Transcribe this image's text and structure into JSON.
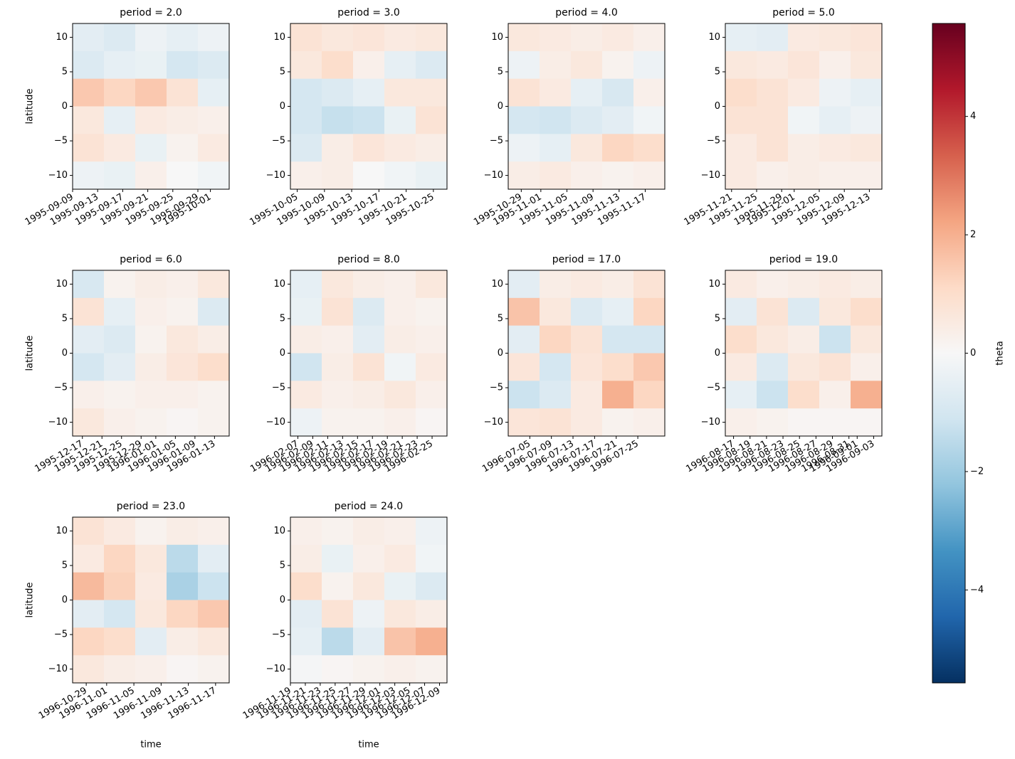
{
  "chart_data": {
    "type": "heatmap",
    "panels": [
      {
        "title": "period = 2.0",
        "ylabel": "latitude",
        "xlim": [
          "1995-09-09",
          "1995-10-04"
        ],
        "xticks": [
          "1995-09-09",
          "1995-09-13",
          "1995-09-17",
          "1995-09-21",
          "1995-09-25",
          "1995-09-29",
          "1995-10-01"
        ],
        "ylim": [
          -12,
          12
        ],
        "yticks": [
          {
            "value": -10,
            "label": "−10"
          },
          {
            "value": -5,
            "label": "−5"
          },
          0,
          5,
          10
        ],
        "z": [
          [
            -0.6,
            -0.8,
            -0.3,
            -0.5,
            -0.3
          ],
          [
            -0.8,
            -0.5,
            -0.4,
            -1,
            -0.8
          ],
          [
            1.5,
            1.2,
            1.5,
            0.8,
            -0.5
          ],
          [
            0.6,
            -0.5,
            0.5,
            0.4,
            0.3
          ],
          [
            0.8,
            0.5,
            -0.4,
            0.2,
            0.5
          ],
          [
            -0.3,
            -0.4,
            0.3,
            0,
            -0.2
          ]
        ]
      },
      {
        "title": "period = 3.0",
        "xlim": [
          "1995-10-04",
          "1995-10-27"
        ],
        "xticks": [
          "1995-10-05",
          "1995-10-09",
          "1995-10-13",
          "1995-10-17",
          "1995-10-21",
          "1995-10-25"
        ],
        "ylim": [
          -12,
          12
        ],
        "yticks": [
          {
            "value": -10,
            "label": "−10"
          },
          {
            "value": -5,
            "label": "−5"
          },
          0,
          5,
          10
        ],
        "z": [
          [
            0.8,
            0.6,
            0.7,
            0.5,
            0.6
          ],
          [
            0.6,
            1.0,
            0.3,
            -0.5,
            -0.8
          ],
          [
            -1,
            -0.8,
            -0.5,
            0.6,
            0.6
          ],
          [
            -1.0,
            -1.3,
            -1.2,
            -0.4,
            0.8
          ],
          [
            -0.8,
            0.4,
            0.7,
            0.5,
            0.4
          ],
          [
            0.3,
            0.4,
            0,
            -0.2,
            -0.4
          ]
        ]
      },
      {
        "title": "period = 4.0",
        "xlim": [
          "1995-10-27",
          "1995-11-20"
        ],
        "xticks": [
          "1995-10-29",
          "1995-11-01",
          "1995-11-05",
          "1995-11-09",
          "1995-11-13",
          "1995-11-17"
        ],
        "ylim": [
          -12,
          12
        ],
        "yticks": [
          {
            "value": -10,
            "label": "−10"
          },
          {
            "value": -5,
            "label": "−5"
          },
          0,
          5,
          10
        ],
        "z": [
          [
            0.6,
            0.5,
            0.4,
            0.5,
            0.3
          ],
          [
            -0.3,
            0.4,
            0.6,
            0.2,
            -0.3
          ],
          [
            0.8,
            0.5,
            -0.5,
            -0.9,
            0.3
          ],
          [
            -1,
            -1.1,
            -0.8,
            -0.6,
            -0.2
          ],
          [
            -0.3,
            -0.5,
            0.6,
            1.2,
            1.0
          ],
          [
            0.4,
            0.5,
            0.3,
            0.2,
            0.3
          ]
        ]
      },
      {
        "title": "period = 5.0",
        "xlim": [
          "1995-11-20",
          "1995-12-15"
        ],
        "xticks": [
          "1995-11-21",
          "1995-11-25",
          "1995-11-29",
          "1995-12-01",
          "1995-12-05",
          "1995-12-09",
          "1995-12-13"
        ],
        "ylim": [
          -12,
          12
        ],
        "yticks": [
          {
            "value": -10,
            "label": "−10"
          },
          {
            "value": -5,
            "label": "−5"
          },
          0,
          5,
          10
        ],
        "z": [
          [
            -0.5,
            -0.6,
            0.5,
            0.6,
            0.7
          ],
          [
            0.6,
            0.5,
            0.7,
            0.3,
            0.6
          ],
          [
            1.0,
            0.8,
            0.5,
            -0.3,
            -0.5
          ],
          [
            0.8,
            0.8,
            -0.2,
            -0.5,
            -0.3
          ],
          [
            0.5,
            0.8,
            0.4,
            0.5,
            0.6
          ],
          [
            0.5,
            0.3,
            0.4,
            0.3,
            0.3
          ]
        ]
      },
      {
        "title": "period = 6.0",
        "ylabel": "latitude",
        "xlim": [
          "1995-12-15",
          "1996-01-16"
        ],
        "xticks": [
          "1995-12-17",
          "1995-12-21",
          "1995-12-25",
          "1995-12-29",
          "1996-01-01",
          "1996-01-05",
          "1996-01-09",
          "1996-01-13"
        ],
        "ylim": [
          -12,
          12
        ],
        "yticks": [
          {
            "value": -10,
            "label": "−10"
          },
          {
            "value": -5,
            "label": "−5"
          },
          0,
          5,
          10
        ],
        "z": [
          [
            -0.9,
            0.2,
            0.4,
            0.3,
            0.6
          ],
          [
            0.8,
            -0.5,
            0.3,
            0.2,
            -0.8
          ],
          [
            -0.6,
            -0.8,
            0.2,
            0.6,
            0.4
          ],
          [
            -1.0,
            -0.6,
            0.4,
            0.7,
            1.0
          ],
          [
            0.3,
            0.2,
            0.3,
            0.3,
            0.2
          ],
          [
            0.6,
            0.3,
            0.2,
            0.1,
            0.2
          ]
        ]
      },
      {
        "title": "period = 8.0",
        "xlim": [
          "1996-02-06",
          "1996-02-27"
        ],
        "xticks": [
          "1996-02-07",
          "1996-02-09",
          "1996-02-11",
          "1996-02-13",
          "1996-02-15",
          "1996-02-17",
          "1996-02-19",
          "1996-02-21",
          "1996-02-23",
          "1996-02-25"
        ],
        "ylim": [
          -12,
          12
        ],
        "yticks": [
          {
            "value": -10,
            "label": "−10"
          },
          {
            "value": -5,
            "label": "−5"
          },
          0,
          5,
          10
        ],
        "z": [
          [
            -0.5,
            0.6,
            0.4,
            0.3,
            0.6
          ],
          [
            -0.4,
            0.8,
            -0.8,
            0.3,
            0.2
          ],
          [
            0.4,
            0.3,
            -0.6,
            0.4,
            0.3
          ],
          [
            -1.1,
            0.4,
            0.8,
            -0.2,
            0.5
          ],
          [
            0.5,
            0.3,
            0.4,
            0.6,
            0.3
          ],
          [
            -0.3,
            0.2,
            0.2,
            0.3,
            0.1
          ]
        ]
      },
      {
        "title": "period = 17.0",
        "xlim": [
          "1996-07-01",
          "1996-07-30"
        ],
        "xticks": [
          "1996-07-05",
          "1996-07-09",
          "1996-07-13",
          "1996-07-17",
          "1996-07-21",
          "1996-07-25"
        ],
        "ylim": [
          -12,
          12
        ],
        "yticks": [
          {
            "value": -10,
            "label": "−10"
          },
          {
            "value": -5,
            "label": "−5"
          },
          0,
          5,
          10
        ],
        "z": [
          [
            -0.6,
            0.4,
            0.5,
            0.4,
            0.8
          ],
          [
            1.6,
            0.6,
            -0.8,
            -0.5,
            1.2
          ],
          [
            -0.6,
            1.2,
            0.8,
            -1.0,
            -1.0
          ],
          [
            0.7,
            -1.0,
            0.7,
            1.0,
            1.5
          ],
          [
            -1.2,
            -0.8,
            0.5,
            2.0,
            1.2
          ],
          [
            0.7,
            0.8,
            0.5,
            0.2,
            0.3
          ]
        ]
      },
      {
        "title": "period = 19.0",
        "xlim": [
          "1996-08-16",
          "1996-09-04"
        ],
        "xticks": [
          "1996-08-17",
          "1996-08-19",
          "1996-08-21",
          "1996-08-23",
          "1996-08-25",
          "1996-08-27",
          "1996-08-29",
          "1996-08-31",
          "1996-09-01",
          "1996-09-03"
        ],
        "ylim": [
          -12,
          12
        ],
        "yticks": [
          {
            "value": -10,
            "label": "−10"
          },
          {
            "value": -5,
            "label": "−5"
          },
          0,
          5,
          10
        ],
        "z": [
          [
            0.5,
            0.3,
            0.4,
            0.5,
            0.4
          ],
          [
            -0.6,
            0.8,
            -0.8,
            0.6,
            1.0
          ],
          [
            1.0,
            0.6,
            0.4,
            -1.2,
            0.6
          ],
          [
            0.5,
            -0.8,
            0.6,
            0.8,
            0.3
          ],
          [
            -0.5,
            -1.2,
            1.0,
            0.3,
            2.0
          ],
          [
            0.3,
            0.2,
            0.1,
            0.1,
            0.1
          ]
        ]
      },
      {
        "title": "period = 23.0",
        "ylabel": "latitude",
        "xlabel": "time",
        "xlim": [
          "1996-10-27",
          "1996-11-19"
        ],
        "xticks": [
          "1996-10-29",
          "1996-11-01",
          "1996-11-05",
          "1996-11-09",
          "1996-11-13",
          "1996-11-17"
        ],
        "ylim": [
          -12,
          12
        ],
        "yticks": [
          {
            "value": -10,
            "label": "−10"
          },
          {
            "value": -5,
            "label": "−5"
          },
          0,
          5,
          10
        ],
        "z": [
          [
            0.8,
            0.5,
            0.2,
            0.4,
            0.3
          ],
          [
            0.5,
            1.2,
            0.6,
            -1.5,
            -0.6
          ],
          [
            1.8,
            1.3,
            0.5,
            -1.8,
            -1.2
          ],
          [
            -0.6,
            -1.0,
            0.6,
            1.2,
            1.5
          ],
          [
            1.2,
            1.0,
            -0.6,
            0.4,
            0.6
          ],
          [
            0.6,
            0.4,
            0.3,
            0.1,
            0.2
          ]
        ]
      },
      {
        "title": "period = 24.0",
        "xlabel": "time",
        "xlim": [
          "1996-11-19",
          "1996-12-10"
        ],
        "xticks": [
          "1996-11-19",
          "1996-11-21",
          "1996-11-23",
          "1996-11-25",
          "1996-11-27",
          "1996-11-29",
          "1996-12-01",
          "1996-12-03",
          "1996-12-05",
          "1996-12-07",
          "1996-12-09"
        ],
        "ylim": [
          -12,
          12
        ],
        "yticks": [
          {
            "value": -10,
            "label": "−10"
          },
          {
            "value": -5,
            "label": "−5"
          },
          0,
          5,
          10
        ],
        "z": [
          [
            0.3,
            0.2,
            0.4,
            0.3,
            -0.3
          ],
          [
            0.4,
            -0.4,
            0.3,
            0.5,
            -0.2
          ],
          [
            1.0,
            0.2,
            0.6,
            -0.4,
            -0.8
          ],
          [
            -0.6,
            0.8,
            -0.3,
            0.6,
            0.4
          ],
          [
            -0.5,
            -1.5,
            -0.6,
            1.6,
            2.0
          ],
          [
            -0.1,
            0.1,
            0.2,
            0.3,
            0.2
          ]
        ]
      }
    ],
    "colorbar": {
      "label": "theta",
      "lim": [
        -5.57,
        5.57
      ],
      "ticks": [
        {
          "value": -4,
          "label": "−4"
        },
        {
          "value": -2,
          "label": "−2"
        },
        0,
        2,
        4
      ],
      "colormap": [
        "#053061",
        "#2166ac",
        "#4393c3",
        "#92c5de",
        "#d1e5f0",
        "#f7f7f7",
        "#fddbc7",
        "#f4a582",
        "#d6604d",
        "#b2182b",
        "#67001f"
      ]
    }
  }
}
